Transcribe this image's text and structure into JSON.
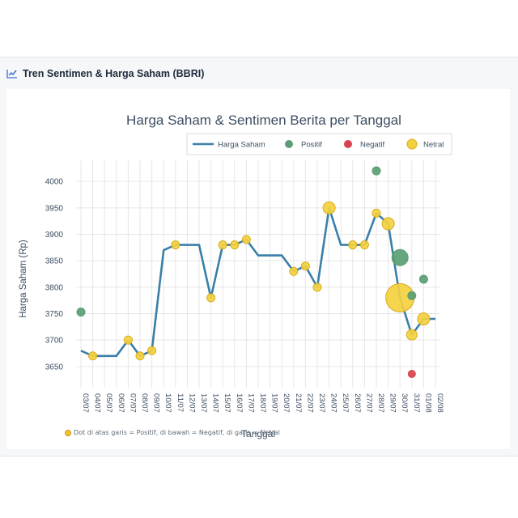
{
  "section": {
    "title": "Tren Sentimen & Harga Saham (BBRI)",
    "icon": "line-chart-icon"
  },
  "footnote": {
    "icon": "lightbulb-icon",
    "text": "Dot di atas garis = Positif, di bawah = Negatif, di garis = Netral"
  },
  "colors": {
    "line": "#3a7fa8",
    "positive": "#5a9e73",
    "negative": "#d8434f",
    "neutral": "#f4d03f",
    "neutral_stroke": "#d6ad1c",
    "grid": "#e6e6e6",
    "text": "#3d4e63"
  },
  "chart_data": {
    "type": "line",
    "title": "Harga Saham & Sentimen Berita per Tanggal",
    "xlabel": "Tanggal",
    "ylabel": "Harga Saham (Rp)",
    "ylim": [
      3610,
      4040
    ],
    "yticks": [
      3650,
      3700,
      3750,
      3800,
      3850,
      3900,
      3950,
      4000
    ],
    "grid": true,
    "legend_position": "top-right",
    "legend": [
      "Harga Saham",
      "Positif",
      "Negatif",
      "Netral"
    ],
    "categories": [
      "03/07",
      "04/07",
      "05/07",
      "06/07",
      "07/07",
      "08/07",
      "09/07",
      "10/07",
      "11/07",
      "12/07",
      "13/07",
      "14/07",
      "15/07",
      "16/07",
      "17/07",
      "18/07",
      "19/07",
      "20/07",
      "21/07",
      "22/07",
      "23/07",
      "24/07",
      "25/07",
      "26/07",
      "27/07",
      "28/07",
      "29/07",
      "30/07",
      "31/07",
      "01/08",
      "02/08"
    ],
    "series": [
      {
        "name": "Harga Saham",
        "points": [
          [
            "03/07",
            3680
          ],
          [
            "04/07",
            3670
          ],
          [
            "05/07",
            3670
          ],
          [
            "06/07",
            3670
          ],
          [
            "07/07",
            3700
          ],
          [
            "08/07",
            3670
          ],
          [
            "09/07",
            3680
          ],
          [
            "10/07",
            3870
          ],
          [
            "11/07",
            3880
          ],
          [
            "12/07",
            3880
          ],
          [
            "13/07",
            3880
          ],
          [
            "14/07",
            3780
          ],
          [
            "15/07",
            3880
          ],
          [
            "16/07",
            3880
          ],
          [
            "17/07",
            3890
          ],
          [
            "18/07",
            3860
          ],
          [
            "19/07",
            3860
          ],
          [
            "20/07",
            3860
          ],
          [
            "21/07",
            3830
          ],
          [
            "22/07",
            3840
          ],
          [
            "23/07",
            3800
          ],
          [
            "24/07",
            3950
          ],
          [
            "25/07",
            3880
          ],
          [
            "26/07",
            3880
          ],
          [
            "27/07",
            3880
          ],
          [
            "28/07",
            3940
          ],
          [
            "29/07",
            3920
          ],
          [
            "30/07",
            3780
          ],
          [
            "31/07",
            3710
          ],
          [
            "01/08",
            3740
          ],
          [
            "02/08",
            3740
          ]
        ]
      },
      {
        "name": "Positif",
        "points": [
          {
            "x": "03/07",
            "y": 3753,
            "size": 1
          },
          {
            "x": "28/07",
            "y": 4020,
            "size": 1
          },
          {
            "x": "30/07",
            "y": 3856,
            "size": 2
          },
          {
            "x": "31/07",
            "y": 3784,
            "size": 1
          },
          {
            "x": "01/08",
            "y": 3815,
            "size": 1
          }
        ]
      },
      {
        "name": "Negatif",
        "points": [
          {
            "x": "31/07",
            "y": 3636,
            "size": 1
          }
        ]
      },
      {
        "name": "Netral",
        "points": [
          {
            "x": "04/07",
            "y": 3670,
            "size": 1
          },
          {
            "x": "07/07",
            "y": 3700,
            "size": 1
          },
          {
            "x": "08/07",
            "y": 3670,
            "size": 1
          },
          {
            "x": "09/07",
            "y": 3680,
            "size": 1
          },
          {
            "x": "11/07",
            "y": 3880,
            "size": 1
          },
          {
            "x": "14/07",
            "y": 3780,
            "size": 1
          },
          {
            "x": "15/07",
            "y": 3880,
            "size": 1
          },
          {
            "x": "16/07",
            "y": 3880,
            "size": 1
          },
          {
            "x": "17/07",
            "y": 3890,
            "size": 1
          },
          {
            "x": "21/07",
            "y": 3830,
            "size": 1
          },
          {
            "x": "22/07",
            "y": 3840,
            "size": 1
          },
          {
            "x": "23/07",
            "y": 3800,
            "size": 1
          },
          {
            "x": "24/07",
            "y": 3950,
            "size": 1.5
          },
          {
            "x": "26/07",
            "y": 3880,
            "size": 1
          },
          {
            "x": "27/07",
            "y": 3880,
            "size": 1
          },
          {
            "x": "28/07",
            "y": 3940,
            "size": 1
          },
          {
            "x": "29/07",
            "y": 3920,
            "size": 1.5
          },
          {
            "x": "30/07",
            "y": 3780,
            "size": 3.5
          },
          {
            "x": "31/07",
            "y": 3710,
            "size": 1.3
          },
          {
            "x": "01/08",
            "y": 3740,
            "size": 1.5
          }
        ]
      }
    ]
  }
}
